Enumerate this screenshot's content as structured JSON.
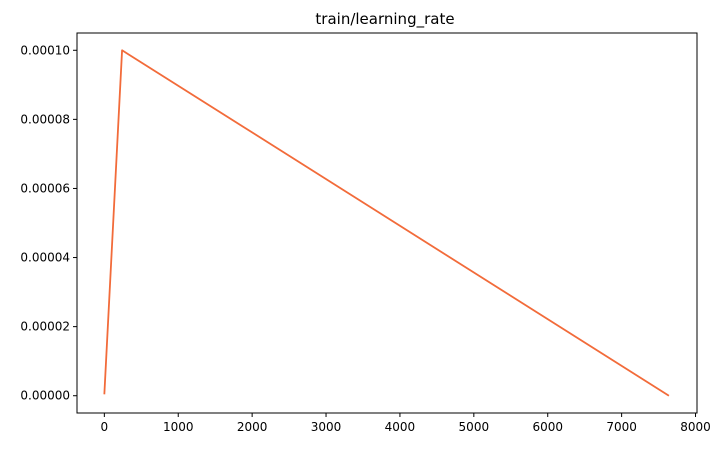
{
  "chart_data": {
    "type": "line",
    "title": "train/learning_rate",
    "xlabel": "",
    "ylabel": "",
    "xlim": [
      -370,
      8020
    ],
    "ylim": [
      -5e-06,
      0.000105
    ],
    "x_ticks": [
      0,
      1000,
      2000,
      3000,
      4000,
      5000,
      6000,
      7000,
      8000
    ],
    "x_tick_labels": [
      "0",
      "1000",
      "2000",
      "3000",
      "4000",
      "5000",
      "6000",
      "7000",
      "8000"
    ],
    "y_ticks": [
      0,
      2e-05,
      4e-05,
      6e-05,
      8e-05,
      0.0001
    ],
    "y_tick_labels": [
      "0.00000",
      "0.00002",
      "0.00004",
      "0.00006",
      "0.00008",
      "0.00010"
    ],
    "grid": false,
    "series": [
      {
        "color": "#f26b3a",
        "x": [
          0,
          240,
          7640
        ],
        "y": [
          4e-07,
          0.0001,
          0.0
        ]
      }
    ]
  }
}
